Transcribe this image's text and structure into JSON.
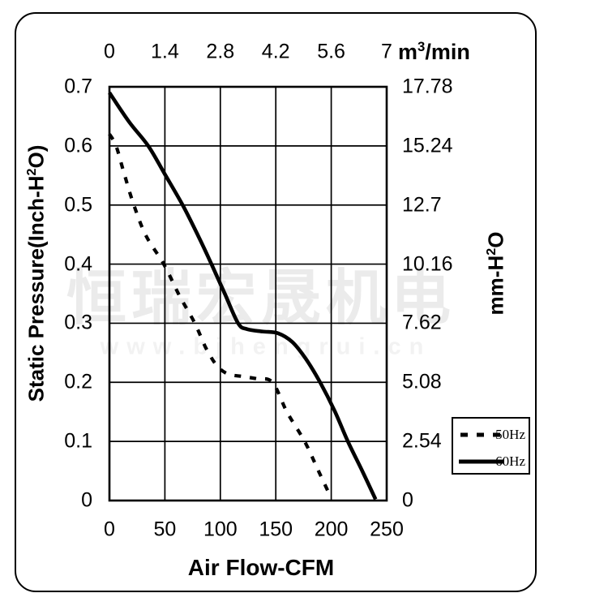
{
  "colors": {
    "line": "#000000",
    "grid": "#000000",
    "watermark_cn": "#ebebeb",
    "watermark_url": "#f2f2f2"
  },
  "watermark": {
    "cn_text": "恒瑞宏晟机电",
    "url_text": "www.bjhengrui.cn"
  },
  "chart_data": {
    "type": "line",
    "title": "",
    "xlabel": "Air Flow-CFM",
    "x_axis_bottom": {
      "label": "Air Flow-CFM",
      "ticks": [
        "0",
        "50",
        "100",
        "150",
        "200",
        "250"
      ],
      "range": [
        0,
        250
      ]
    },
    "x_axis_top": {
      "unit_pre": "m",
      "unit_sup": "3",
      "unit_post": "/min",
      "ticks": [
        "0",
        "1.4",
        "2.8",
        "4.2",
        "5.6",
        "7"
      ]
    },
    "y_axis_left": {
      "label_pre": "Static Pressure(Inch-H",
      "label_sup": "2",
      "label_post": "O)",
      "ticks": [
        "0.7",
        "0.6",
        "0.5",
        "0.4",
        "0.3",
        "0.2",
        "0.1",
        "0"
      ],
      "range": [
        0,
        0.7
      ]
    },
    "y_axis_right": {
      "label_pre": "mm-H",
      "label_sup": "2",
      "label_post": "O",
      "ticks": [
        "17.78",
        "15.24",
        "12.7",
        "10.16",
        "7.62",
        "5.08",
        "2.54",
        "0"
      ]
    },
    "grid": true,
    "legend_position": "outside-right-bottom",
    "series": [
      {
        "name": "50Hz",
        "style": "dashed",
        "points_cfm_inchH2O": [
          [
            0,
            0.62
          ],
          [
            6,
            0.6
          ],
          [
            13,
            0.555
          ],
          [
            22,
            0.5
          ],
          [
            33,
            0.448
          ],
          [
            49,
            0.4
          ],
          [
            63,
            0.347
          ],
          [
            77,
            0.3
          ],
          [
            87,
            0.258
          ],
          [
            97,
            0.228
          ],
          [
            107,
            0.214
          ],
          [
            120,
            0.21
          ],
          [
            133,
            0.206
          ],
          [
            147,
            0.2
          ],
          [
            160,
            0.15
          ],
          [
            176,
            0.1
          ],
          [
            188,
            0.052
          ],
          [
            198,
            0.012
          ]
        ]
      },
      {
        "name": "60Hz",
        "style": "solid",
        "points_cfm_inchH2O": [
          [
            0,
            0.69
          ],
          [
            18,
            0.64
          ],
          [
            35,
            0.6
          ],
          [
            50,
            0.552
          ],
          [
            66,
            0.5
          ],
          [
            80,
            0.448
          ],
          [
            92,
            0.4
          ],
          [
            104,
            0.35
          ],
          [
            116,
            0.3
          ],
          [
            124,
            0.29
          ],
          [
            138,
            0.286
          ],
          [
            152,
            0.283
          ],
          [
            165,
            0.268
          ],
          [
            177,
            0.24
          ],
          [
            190,
            0.2
          ],
          [
            203,
            0.152
          ],
          [
            215,
            0.1
          ],
          [
            228,
            0.05
          ],
          [
            240,
            0.002
          ]
        ]
      }
    ]
  }
}
